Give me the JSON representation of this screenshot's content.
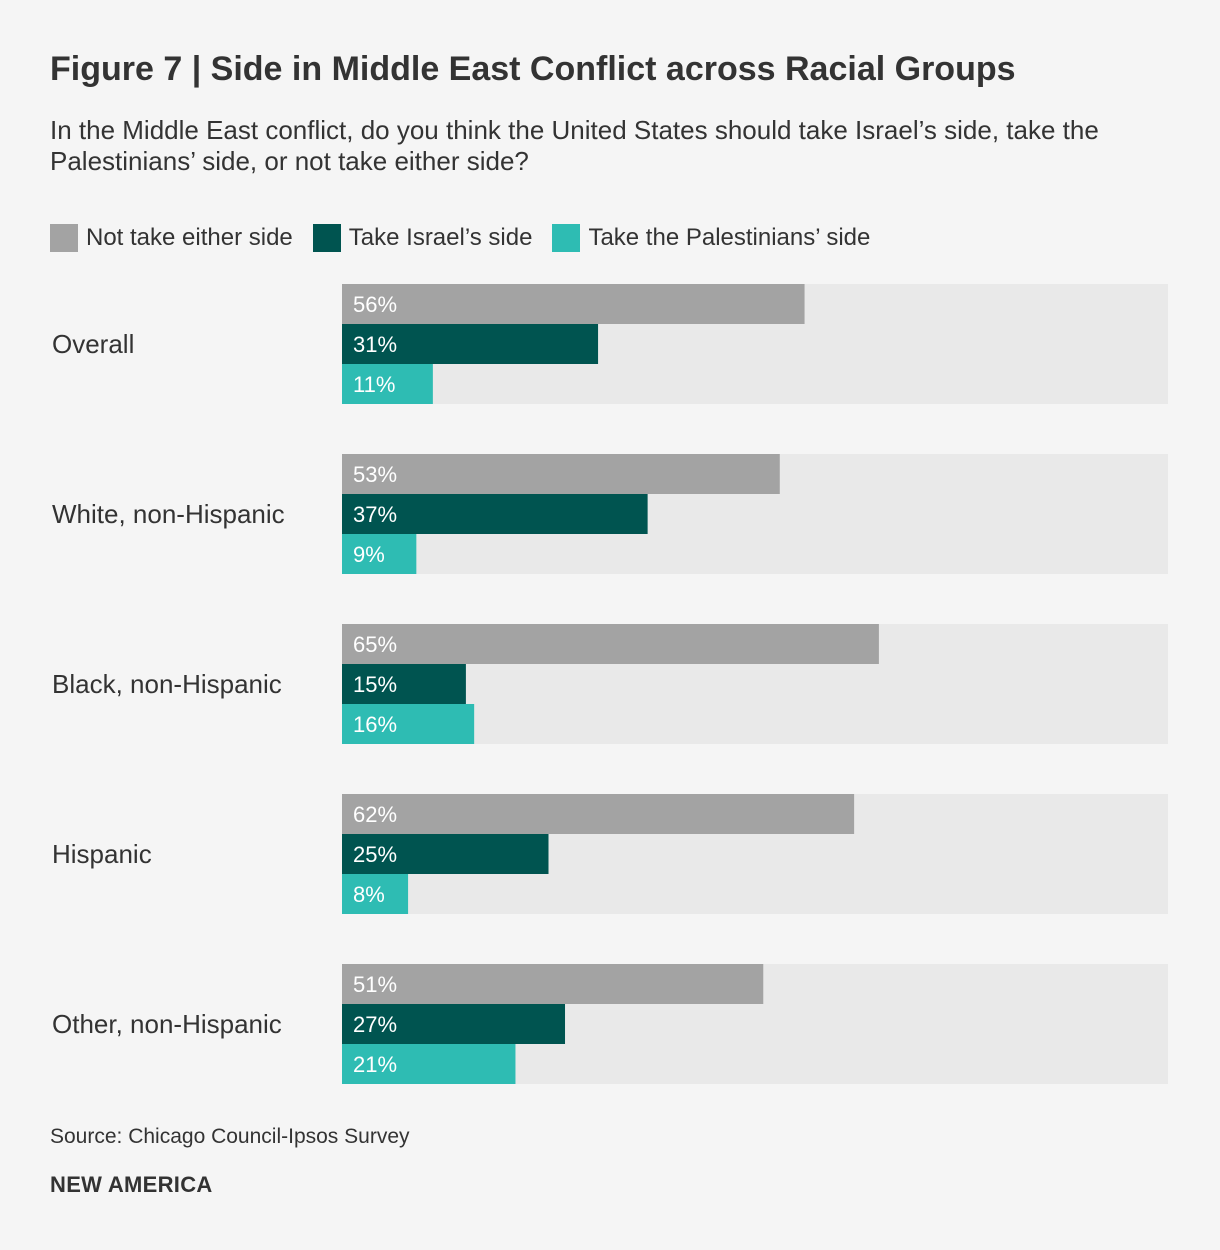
{
  "header": {
    "title": "Figure 7 | Side in Middle East Conflict across Racial Groups",
    "subtitle": "In the Middle East conflict, do you think the United States should take Israel’s side, take the Palestinians’ side, or not take either side?"
  },
  "colors": {
    "neither": "#a3a3a3",
    "israel": "#005450",
    "palestinians": "#2ebcb3",
    "track": "#e9e9e9",
    "text": "#333333",
    "bar_label": "#ffffff"
  },
  "chart_data": {
    "type": "bar",
    "orientation": "horizontal",
    "title": "Figure 7 | Side in Middle East Conflict across Racial Groups",
    "categories": [
      "Overall",
      "White, non-Hispanic",
      "Black, non-Hispanic",
      "Hispanic",
      "Other, non-Hispanic"
    ],
    "series": [
      {
        "name": "Not take either side",
        "color_key": "neither",
        "values": [
          56,
          53,
          65,
          62,
          51
        ],
        "labels": [
          "56%",
          "53%",
          "65%",
          "62%",
          "51%"
        ]
      },
      {
        "name": "Take Israel’s side",
        "color_key": "israel",
        "values": [
          31,
          37,
          15,
          25,
          27
        ],
        "labels": [
          "31%",
          "37%",
          "15%",
          "25%",
          "27%"
        ]
      },
      {
        "name": "Take the Palestinians’ side",
        "color_key": "palestinians",
        "values": [
          11,
          9,
          16,
          8,
          21
        ],
        "labels": [
          "11%",
          "9%",
          "16%",
          "8%",
          "21%"
        ]
      }
    ],
    "xlim": [
      0,
      100
    ],
    "unit": "%",
    "legend": "top-left",
    "grid": false
  },
  "legend": {
    "items": [
      {
        "label": "Not take either side",
        "color_key": "neither"
      },
      {
        "label": "Take Israel’s side",
        "color_key": "israel"
      },
      {
        "label": "Take the Palestinians’ side",
        "color_key": "palestinians"
      }
    ]
  },
  "footer": {
    "source": "Source: Chicago Council-Ipsos Survey",
    "brand": "NEW AMERICA"
  }
}
